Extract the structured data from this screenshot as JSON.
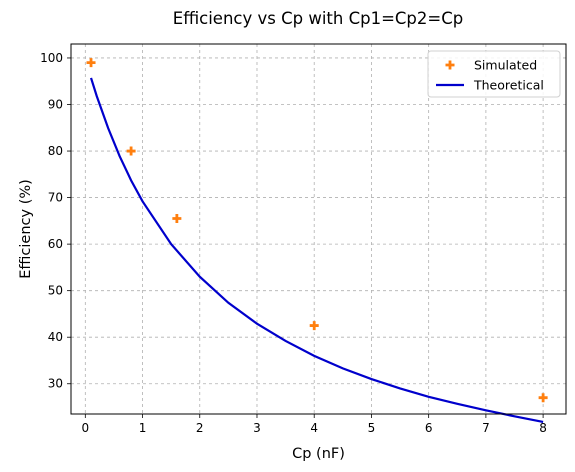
{
  "chart_data": {
    "type": "line",
    "title": "Efficiency vs Cp with Cp1=Cp2=Cp",
    "xlabel": "Cp (nF)",
    "ylabel": "Efficiency (%)",
    "xlim": [
      -0.25,
      8.4
    ],
    "ylim": [
      23.5,
      103
    ],
    "xticks": [
      0,
      1,
      2,
      3,
      4,
      5,
      6,
      7,
      8
    ],
    "yticks": [
      30,
      40,
      50,
      60,
      70,
      80,
      90,
      100
    ],
    "grid": true,
    "legend_position": "top-right",
    "series": [
      {
        "name": "Simulated",
        "kind": "scatter",
        "marker": "plus",
        "color": "#ff7f0e",
        "x": [
          0.1,
          0.8,
          1.6,
          4.0,
          8.0
        ],
        "y": [
          99.0,
          80.0,
          65.5,
          42.5,
          27.0
        ]
      },
      {
        "name": "Theoretical",
        "kind": "line",
        "color": "#0000cc",
        "x": [
          0.1,
          0.2,
          0.4,
          0.6,
          0.8,
          1.0,
          1.5,
          2.0,
          2.5,
          3.0,
          3.5,
          4.0,
          4.5,
          5.0,
          5.5,
          6.0,
          6.5,
          7.0,
          7.5,
          8.0
        ],
        "y": [
          95.7,
          91.8,
          84.9,
          78.9,
          73.7,
          69.2,
          60.0,
          53.0,
          47.4,
          42.9,
          39.2,
          36.0,
          33.3,
          31.0,
          29.0,
          27.2,
          25.7,
          24.3,
          23.0,
          21.8
        ]
      }
    ]
  }
}
